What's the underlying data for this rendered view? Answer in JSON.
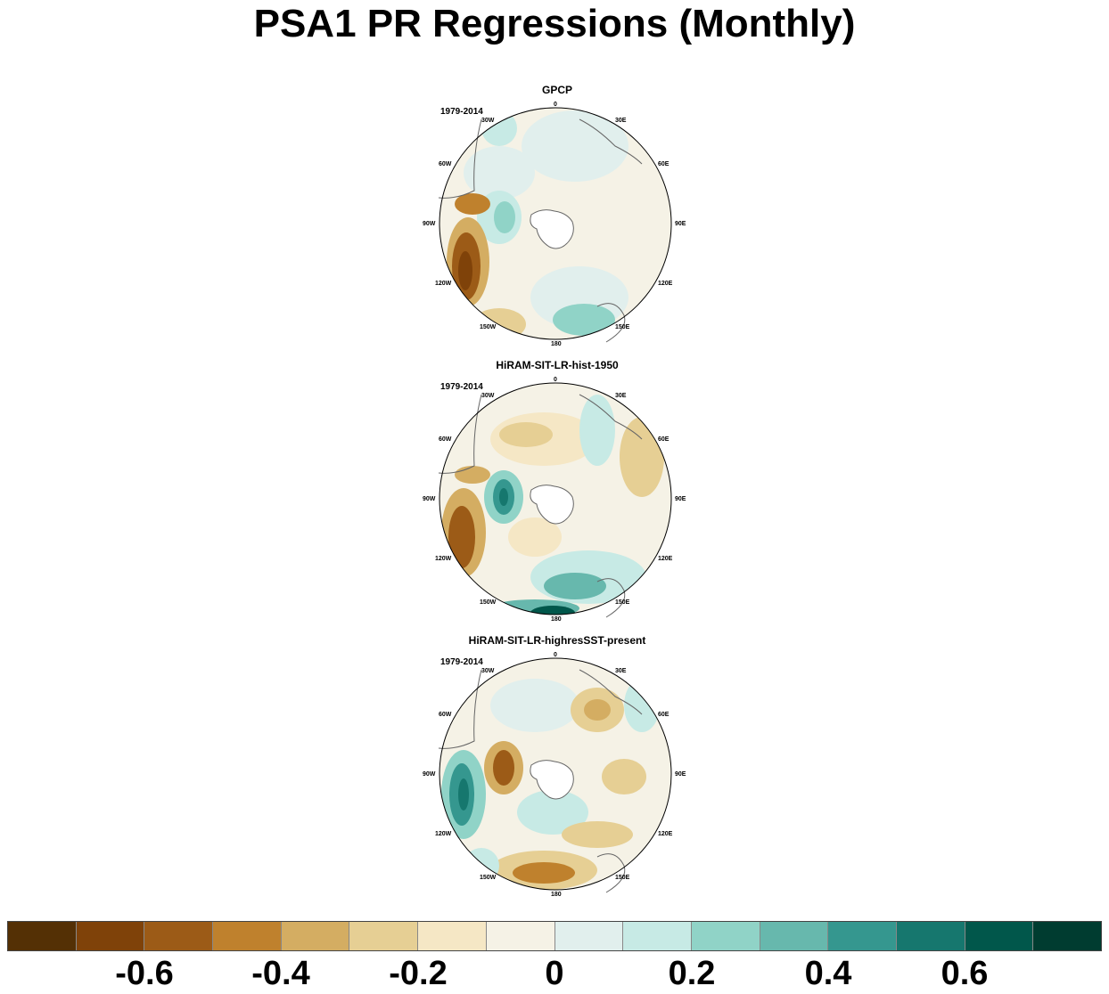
{
  "title": "PSA1 PR Regressions (Monthly)",
  "panels": [
    {
      "name": "GPCP",
      "period": "1979-2014"
    },
    {
      "name": "HiRAM-SIT-LR-hist-1950",
      "period": "1979-2014"
    },
    {
      "name": "HiRAM-SIT-LR-highresSST-present",
      "period": "1979-2014"
    }
  ],
  "map_labels": {
    "0": "0",
    "30E": "30E",
    "60E": "60E",
    "90E": "90E",
    "120E": "120E",
    "150E": "150E",
    "180": "180",
    "150W": "150W",
    "120W": "120W",
    "90W": "90W",
    "60W": "60W",
    "30W": "30W"
  },
  "colorbar": {
    "colors": [
      "#543005",
      "#7f4209",
      "#9c5b17",
      "#bf812d",
      "#d4ad62",
      "#e6cf94",
      "#f5e7c5",
      "#f5f2e6",
      "#e1efed",
      "#c7eae5",
      "#90d3c7",
      "#67b8ad",
      "#35978f",
      "#16776e",
      "#01574b",
      "#003c30"
    ],
    "ticks": [
      "-0.6",
      "-0.4",
      "-0.2",
      "0",
      "0.2",
      "0.4",
      "0.6"
    ]
  }
}
